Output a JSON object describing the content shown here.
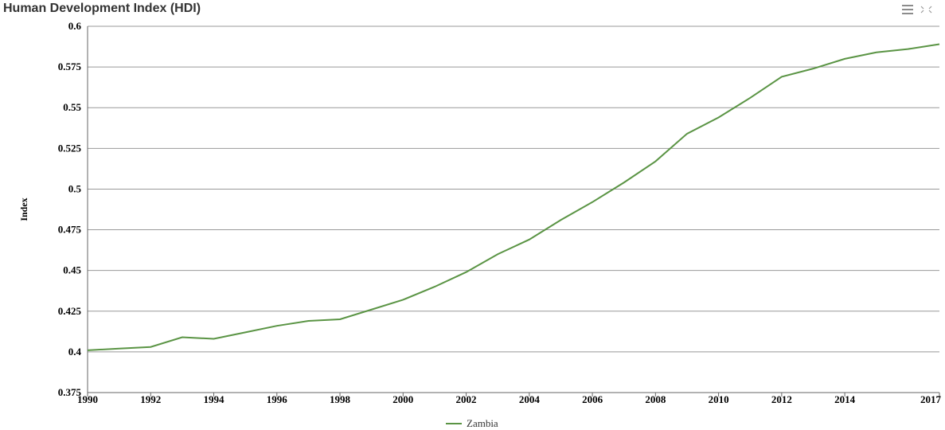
{
  "chart_data": {
    "type": "line",
    "title": "Human Development Index (HDI)",
    "y_label": "Index",
    "x": [
      1990,
      1991,
      1992,
      1993,
      1994,
      1995,
      1996,
      1997,
      1998,
      1999,
      2000,
      2001,
      2002,
      2003,
      2004,
      2005,
      2006,
      2007,
      2008,
      2009,
      2010,
      2011,
      2012,
      2013,
      2014,
      2015,
      2016,
      2017
    ],
    "series": [
      {
        "name": "Zambia",
        "color": "#5a9444",
        "values": [
          0.401,
          0.402,
          0.403,
          0.409,
          0.408,
          0.412,
          0.416,
          0.419,
          0.42,
          0.426,
          0.432,
          0.44,
          0.449,
          0.46,
          0.469,
          0.481,
          0.492,
          0.504,
          0.517,
          0.534,
          0.544,
          0.556,
          0.569,
          0.574,
          0.58,
          0.584,
          0.586,
          0.589
        ]
      }
    ],
    "xlim": [
      1990,
      2017
    ],
    "xticks": [
      1990,
      1992,
      1994,
      1996,
      1998,
      2000,
      2002,
      2004,
      2006,
      2008,
      2010,
      2012,
      2014,
      2017
    ],
    "ylim": [
      0.375,
      0.6
    ],
    "yticks": [
      0.375,
      0.4,
      0.425,
      0.45,
      0.475,
      0.5,
      0.525,
      0.55,
      0.575,
      0.6
    ],
    "grid": true,
    "legend": "bottom"
  }
}
